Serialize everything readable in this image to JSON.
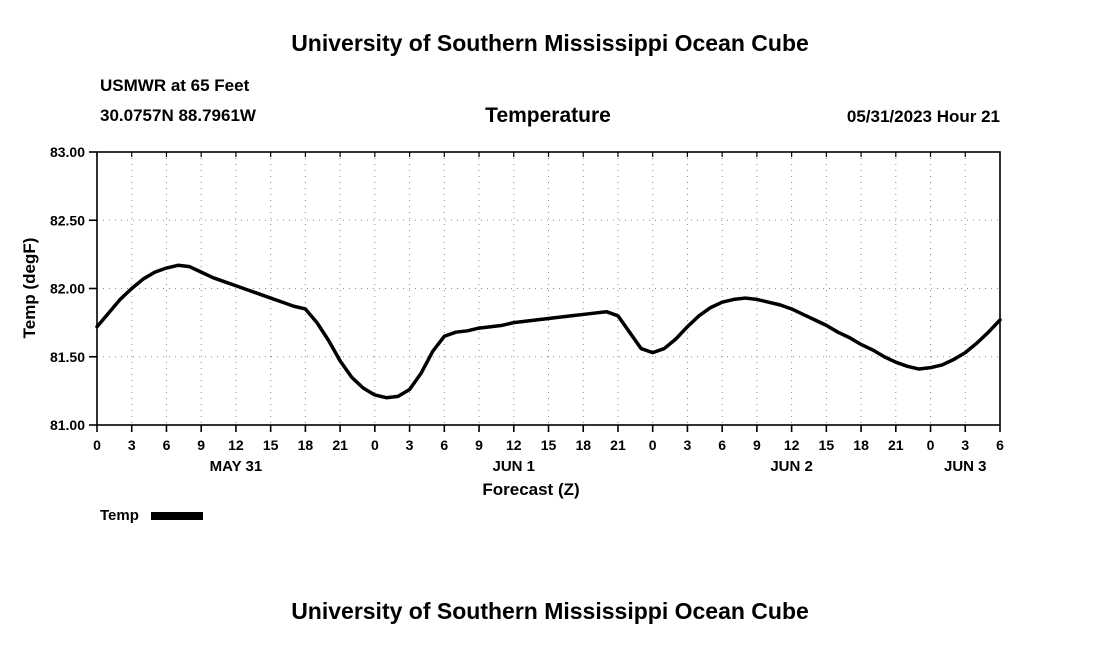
{
  "page": {
    "title_top": "University of Southern Mississippi Ocean Cube",
    "title_bottom": "University of Southern Mississippi Ocean Cube"
  },
  "header": {
    "station": "USMWR at 65 Feet",
    "coordinates": "30.0757N  88.7961W",
    "plot_title": "Temperature",
    "run_time": "05/31/2023 Hour 21"
  },
  "legend": {
    "label": "Temp",
    "line_color": "#000000"
  },
  "chart_data": {
    "type": "line",
    "title": "Temperature",
    "xlabel": "Forecast (Z)",
    "ylabel": "Temp (degF)",
    "ylim": [
      81.0,
      83.0
    ],
    "xlim_hours": [
      0,
      78
    ],
    "grid": true,
    "legend_position": "bottom-left",
    "line_color": "#000000",
    "y_ticks": [
      81.0,
      81.5,
      82.0,
      82.5,
      83.0
    ],
    "y_tick_labels": [
      "81.00",
      "81.50",
      "82.00",
      "82.50",
      "83.00"
    ],
    "x_tick_interval_hours": 3,
    "x_tick_labels": [
      "0",
      "3",
      "6",
      "9",
      "12",
      "15",
      "18",
      "21",
      "0",
      "3",
      "6",
      "9",
      "12",
      "15",
      "18",
      "21",
      "0",
      "3",
      "6",
      "9",
      "12",
      "15",
      "18",
      "21",
      "0",
      "3",
      "6"
    ],
    "day_labels": [
      {
        "label": "MAY 31",
        "center_hour": 12
      },
      {
        "label": "JUN 1",
        "center_hour": 36
      },
      {
        "label": "JUN 2",
        "center_hour": 60
      },
      {
        "label": "JUN 3",
        "center_hour": 75
      }
    ],
    "series": [
      {
        "name": "Temp",
        "x_hours": [
          0,
          1,
          2,
          3,
          4,
          5,
          6,
          7,
          8,
          9,
          10,
          11,
          12,
          13,
          14,
          15,
          16,
          17,
          18,
          19,
          20,
          21,
          22,
          23,
          24,
          25,
          26,
          27,
          28,
          29,
          30,
          31,
          32,
          33,
          34,
          35,
          36,
          37,
          38,
          39,
          40,
          41,
          42,
          43,
          44,
          45,
          46,
          47,
          48,
          49,
          50,
          51,
          52,
          53,
          54,
          55,
          56,
          57,
          58,
          59,
          60,
          61,
          62,
          63,
          64,
          65,
          66,
          67,
          68,
          69,
          70,
          71,
          72,
          73,
          74,
          75,
          76,
          77,
          78
        ],
        "values": [
          81.72,
          81.82,
          81.92,
          82.0,
          82.07,
          82.12,
          82.15,
          82.17,
          82.16,
          82.12,
          82.08,
          82.05,
          82.02,
          81.99,
          81.96,
          81.93,
          81.9,
          81.87,
          81.85,
          81.75,
          81.62,
          81.47,
          81.35,
          81.27,
          81.22,
          81.2,
          81.21,
          81.26,
          81.38,
          81.54,
          81.65,
          81.68,
          81.69,
          81.71,
          81.72,
          81.73,
          81.75,
          81.76,
          81.77,
          81.78,
          81.79,
          81.8,
          81.81,
          81.82,
          81.83,
          81.8,
          81.68,
          81.56,
          81.53,
          81.56,
          81.63,
          81.72,
          81.8,
          81.86,
          81.9,
          81.92,
          81.93,
          81.92,
          81.9,
          81.88,
          81.85,
          81.81,
          81.77,
          81.73,
          81.68,
          81.64,
          81.59,
          81.55,
          81.5,
          81.46,
          81.43,
          81.41,
          81.42,
          81.44,
          81.48,
          81.53,
          81.6,
          81.68,
          81.77
        ]
      }
    ]
  }
}
